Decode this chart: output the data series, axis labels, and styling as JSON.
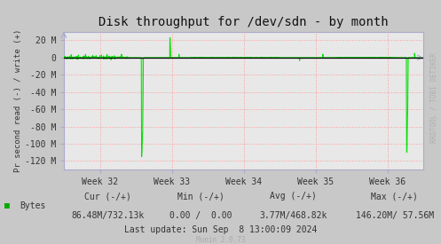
{
  "title": "Disk throughput for /dev/sdn - by month",
  "ylabel": "Pr second read (-) / write (+)",
  "xlabel_ticks": [
    "Week 32",
    "Week 33",
    "Week 34",
    "Week 35",
    "Week 36"
  ],
  "ylim": [
    -130000000,
    30000000
  ],
  "yticks": [
    20000000,
    0,
    -20000000,
    -40000000,
    -60000000,
    -80000000,
    -100000000,
    -120000000
  ],
  "ytick_labels": [
    "20 M",
    "0",
    "-20 M",
    "-40 M",
    "-60 M",
    "-80 M",
    "-100 M",
    "-120 M"
  ],
  "bg_color": "#c8c8c8",
  "plot_bg_color": "#e8e8e8",
  "grid_color": "#ff9999",
  "grid_style": "dotted",
  "line_color": "#00e000",
  "zero_line_color": "#000000",
  "legend_label": "Bytes",
  "legend_color": "#00aa00",
  "footer_cur": "Cur (-/+)",
  "footer_cur_val": "86.48M/732.13k",
  "footer_min": "Min (-/+)",
  "footer_min_val": "0.00 /  0.00",
  "footer_avg": "Avg (-/+)",
  "footer_avg_val": "3.77M/468.82k",
  "footer_max": "Max (-/+)",
  "footer_max_val": "146.20M/ 57.56M",
  "footer_update": "Last update: Sun Sep  8 13:00:09 2024",
  "munin_version": "Munin 2.0.73",
  "watermark": "RRDTOOL / TOBI OETIKER",
  "spine_color": "#aaaacc",
  "title_fontsize": 10,
  "tick_fontsize": 7,
  "footer_fontsize": 7,
  "ylabel_fontsize": 6.5,
  "watermark_fontsize": 5.5,
  "xtick_positions": [
    0.1,
    0.3,
    0.5,
    0.7,
    0.9
  ]
}
